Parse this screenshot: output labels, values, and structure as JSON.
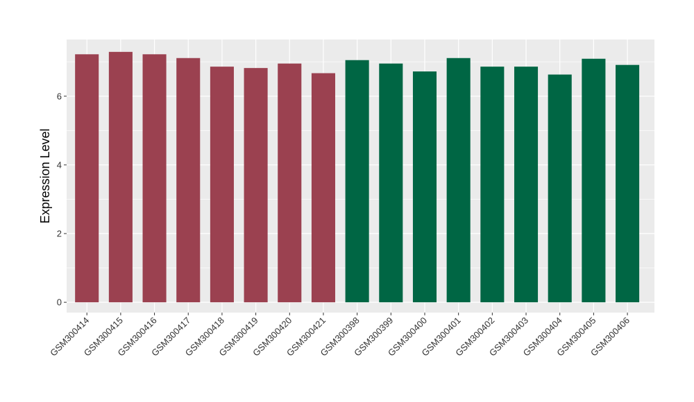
{
  "chart_data": {
    "type": "bar",
    "title": "",
    "xlabel": "",
    "ylabel": "Expression Level",
    "ylim": [
      -0.3,
      7.65
    ],
    "yticks": [
      0,
      2,
      4,
      6
    ],
    "grid": true,
    "legend": "none",
    "background": "#EBEBEB",
    "gridline_color": "#FFFFFF",
    "categories": [
      "GSM300414",
      "GSM300415",
      "GSM300416",
      "GSM300417",
      "GSM300418",
      "GSM300419",
      "GSM300420",
      "GSM300421",
      "GSM300398",
      "GSM300399",
      "GSM300400",
      "GSM300401",
      "GSM300402",
      "GSM300403",
      "GSM300404",
      "GSM300405",
      "GSM300406"
    ],
    "values": [
      7.22,
      7.29,
      7.22,
      7.11,
      6.86,
      6.82,
      6.95,
      6.67,
      7.05,
      6.95,
      6.72,
      7.11,
      6.86,
      6.86,
      6.63,
      7.09,
      6.91
    ],
    "colors": [
      "#9B4150",
      "#9B4150",
      "#9B4150",
      "#9B4150",
      "#9B4150",
      "#9B4150",
      "#9B4150",
      "#9B4150",
      "#006644",
      "#006644",
      "#006644",
      "#006644",
      "#006644",
      "#006644",
      "#006644",
      "#006644",
      "#006644"
    ]
  }
}
